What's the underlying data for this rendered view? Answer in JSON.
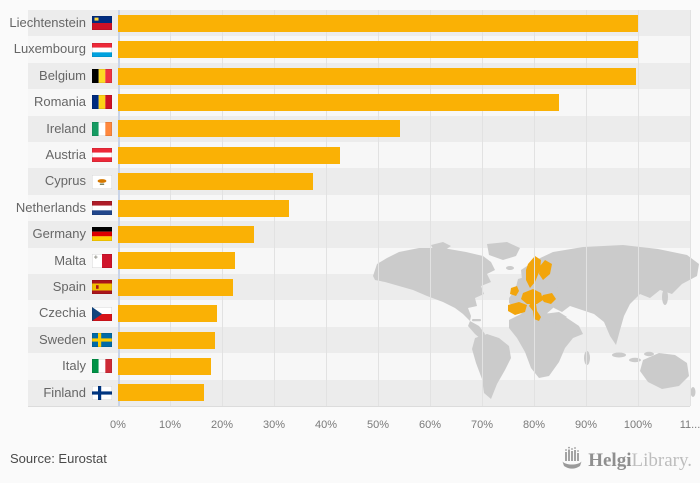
{
  "chart_data": {
    "type": "bar",
    "orientation": "horizontal",
    "title": "",
    "xlabel": "",
    "ylabel": "",
    "unit": "%",
    "categories": [
      "Liechtenstein",
      "Luxembourg",
      "Belgium",
      "Romania",
      "Ireland",
      "Austria",
      "Cyprus",
      "Netherlands",
      "Germany",
      "Malta",
      "Spain",
      "Czechia",
      "Sweden",
      "Italy",
      "Finland"
    ],
    "values": [
      100,
      100,
      99.7,
      84.8,
      54.3,
      42.6,
      37.5,
      32.8,
      26.2,
      22.5,
      22.2,
      19.1,
      18.7,
      17.9,
      16.5
    ],
    "xlim": [
      0,
      110
    ],
    "x_tick_labels": [
      "0%",
      "10%",
      "20%",
      "30%",
      "40%",
      "50%",
      "60%",
      "70%",
      "80%",
      "90%",
      "100%",
      "11..."
    ],
    "grid": true,
    "legend": "none",
    "source": "Source: Eurostat"
  },
  "branding": {
    "bold": "Helgi",
    "light": "Library."
  },
  "colors": {
    "background": "#fafafa",
    "band_dark": "#ececec",
    "band_light": "#f7f7f7",
    "bar": "#FAB105",
    "gridline": "#e2e2e2",
    "zero_line": "#c9d4e8",
    "axis_text": "#7a7a7a",
    "label_text": "#666666",
    "map_land": "#cbcbcb",
    "map_highlight": "#F2A50C",
    "source_text": "#4a4a4a",
    "logo_dark": "#8f8f8f",
    "logo_light": "#bdbdbd"
  },
  "flags": {
    "Liechtenstein": {
      "type": "liech",
      "top": "#002B7F",
      "bottom": "#CE1126",
      "crown": "#FFD83D"
    },
    "Luxembourg": {
      "type": "h",
      "stripes": [
        "#ED2939",
        "#FFFFFF",
        "#00A1DE"
      ]
    },
    "Belgium": {
      "type": "v",
      "stripes": [
        "#000000",
        "#FDDA24",
        "#EF3340"
      ]
    },
    "Romania": {
      "type": "v",
      "stripes": [
        "#002B7F",
        "#FCD116",
        "#CE1126"
      ]
    },
    "Ireland": {
      "type": "v",
      "stripes": [
        "#169B62",
        "#FFFFFF",
        "#FF883E"
      ]
    },
    "Austria": {
      "type": "h",
      "stripes": [
        "#ED2939",
        "#FFFFFF",
        "#ED2939"
      ]
    },
    "Cyprus": {
      "type": "cyprus",
      "bg": "#FFFFFF",
      "island": "#D57800",
      "branches": "#4E5B31"
    },
    "Netherlands": {
      "type": "h",
      "stripes": [
        "#AE1C28",
        "#FFFFFF",
        "#21468B"
      ]
    },
    "Germany": {
      "type": "h",
      "stripes": [
        "#000000",
        "#DD0000",
        "#FFCE00"
      ]
    },
    "Malta": {
      "type": "malta",
      "left": "#FFFFFF",
      "right": "#CF142B",
      "cross": "#A3A39B"
    },
    "Spain": {
      "type": "spain",
      "stripes": [
        "#AA151B",
        "#F1BF00"
      ]
    },
    "Czechia": {
      "type": "czech",
      "top": "#FFFFFF",
      "bottom": "#D7141A",
      "triangle": "#11457E"
    },
    "Sweden": {
      "type": "nordic",
      "bg": "#006AA7",
      "cross": "#FECC00"
    },
    "Italy": {
      "type": "v",
      "stripes": [
        "#009246",
        "#FFFFFF",
        "#CE2B37"
      ]
    },
    "Finland": {
      "type": "nordic",
      "bg": "#FFFFFF",
      "cross": "#003580"
    }
  }
}
